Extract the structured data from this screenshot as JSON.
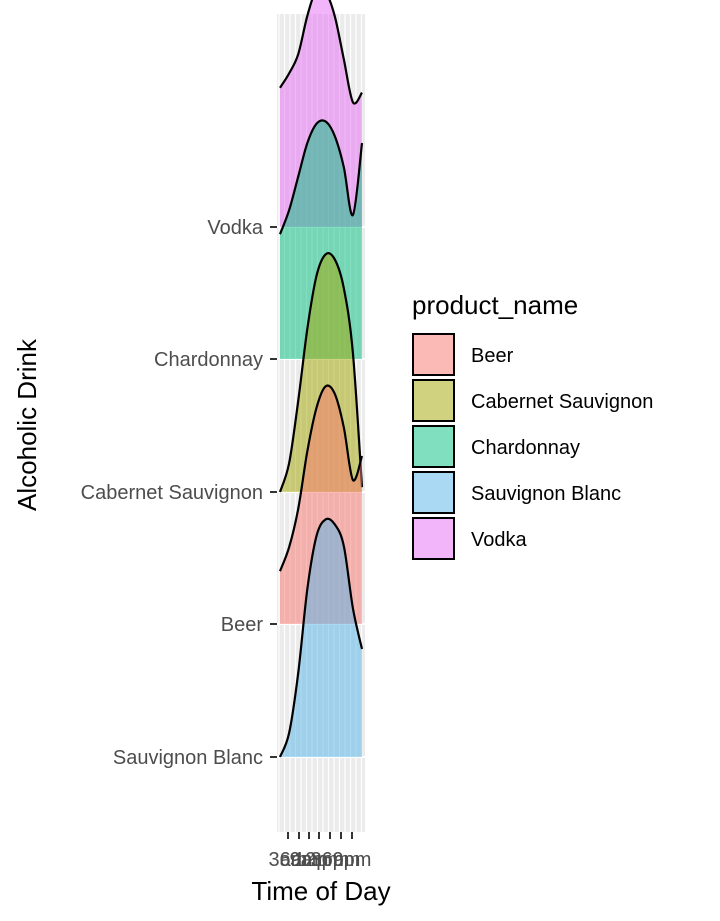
{
  "chart_data": {
    "type": "ridgeline",
    "title": "",
    "xlabel": "Time of Day",
    "ylabel": "Alcoholic Drink",
    "x_tick_labels": [
      "3am",
      "6am",
      "9am",
      "12pm",
      "3pm",
      "6pm",
      "9pm"
    ],
    "categories": [
      "Sauvignon Blanc",
      "Beer",
      "Cabernet Sauvignon",
      "Chardonnay",
      "Vodka"
    ],
    "legend_title": "product_name",
    "legend_entries": [
      "Beer",
      "Cabernet Sauvignon",
      "Chardonnay",
      "Sauvignon Blanc",
      "Vodka"
    ],
    "legend_position": "right",
    "grid": true,
    "series": [
      {
        "name": "Sauvignon Blanc",
        "color": "#56B4E9",
        "density": [
          0.0,
          0.1,
          0.35,
          0.7,
          0.92,
          0.99,
          0.97,
          0.88,
          0.62,
          0.45
        ]
      },
      {
        "name": "Beer",
        "color": "#F8766D",
        "density": [
          0.22,
          0.32,
          0.48,
          0.72,
          0.9,
          0.99,
          0.96,
          0.82,
          0.6,
          0.7
        ]
      },
      {
        "name": "Cabernet Sauvignon",
        "color": "#A3A500",
        "density": [
          0.0,
          0.12,
          0.38,
          0.68,
          0.9,
          0.99,
          0.97,
          0.85,
          0.58,
          0.02
        ]
      },
      {
        "name": "Chardonnay",
        "color": "#00BF7D",
        "density": [
          0.52,
          0.62,
          0.76,
          0.9,
          0.98,
          0.99,
          0.93,
          0.8,
          0.6,
          0.9
        ]
      },
      {
        "name": "Vodka",
        "color": "#E76BF3",
        "density": [
          0.58,
          0.64,
          0.72,
          0.88,
          0.99,
          0.98,
          0.88,
          0.7,
          0.52,
          0.56
        ]
      }
    ]
  }
}
